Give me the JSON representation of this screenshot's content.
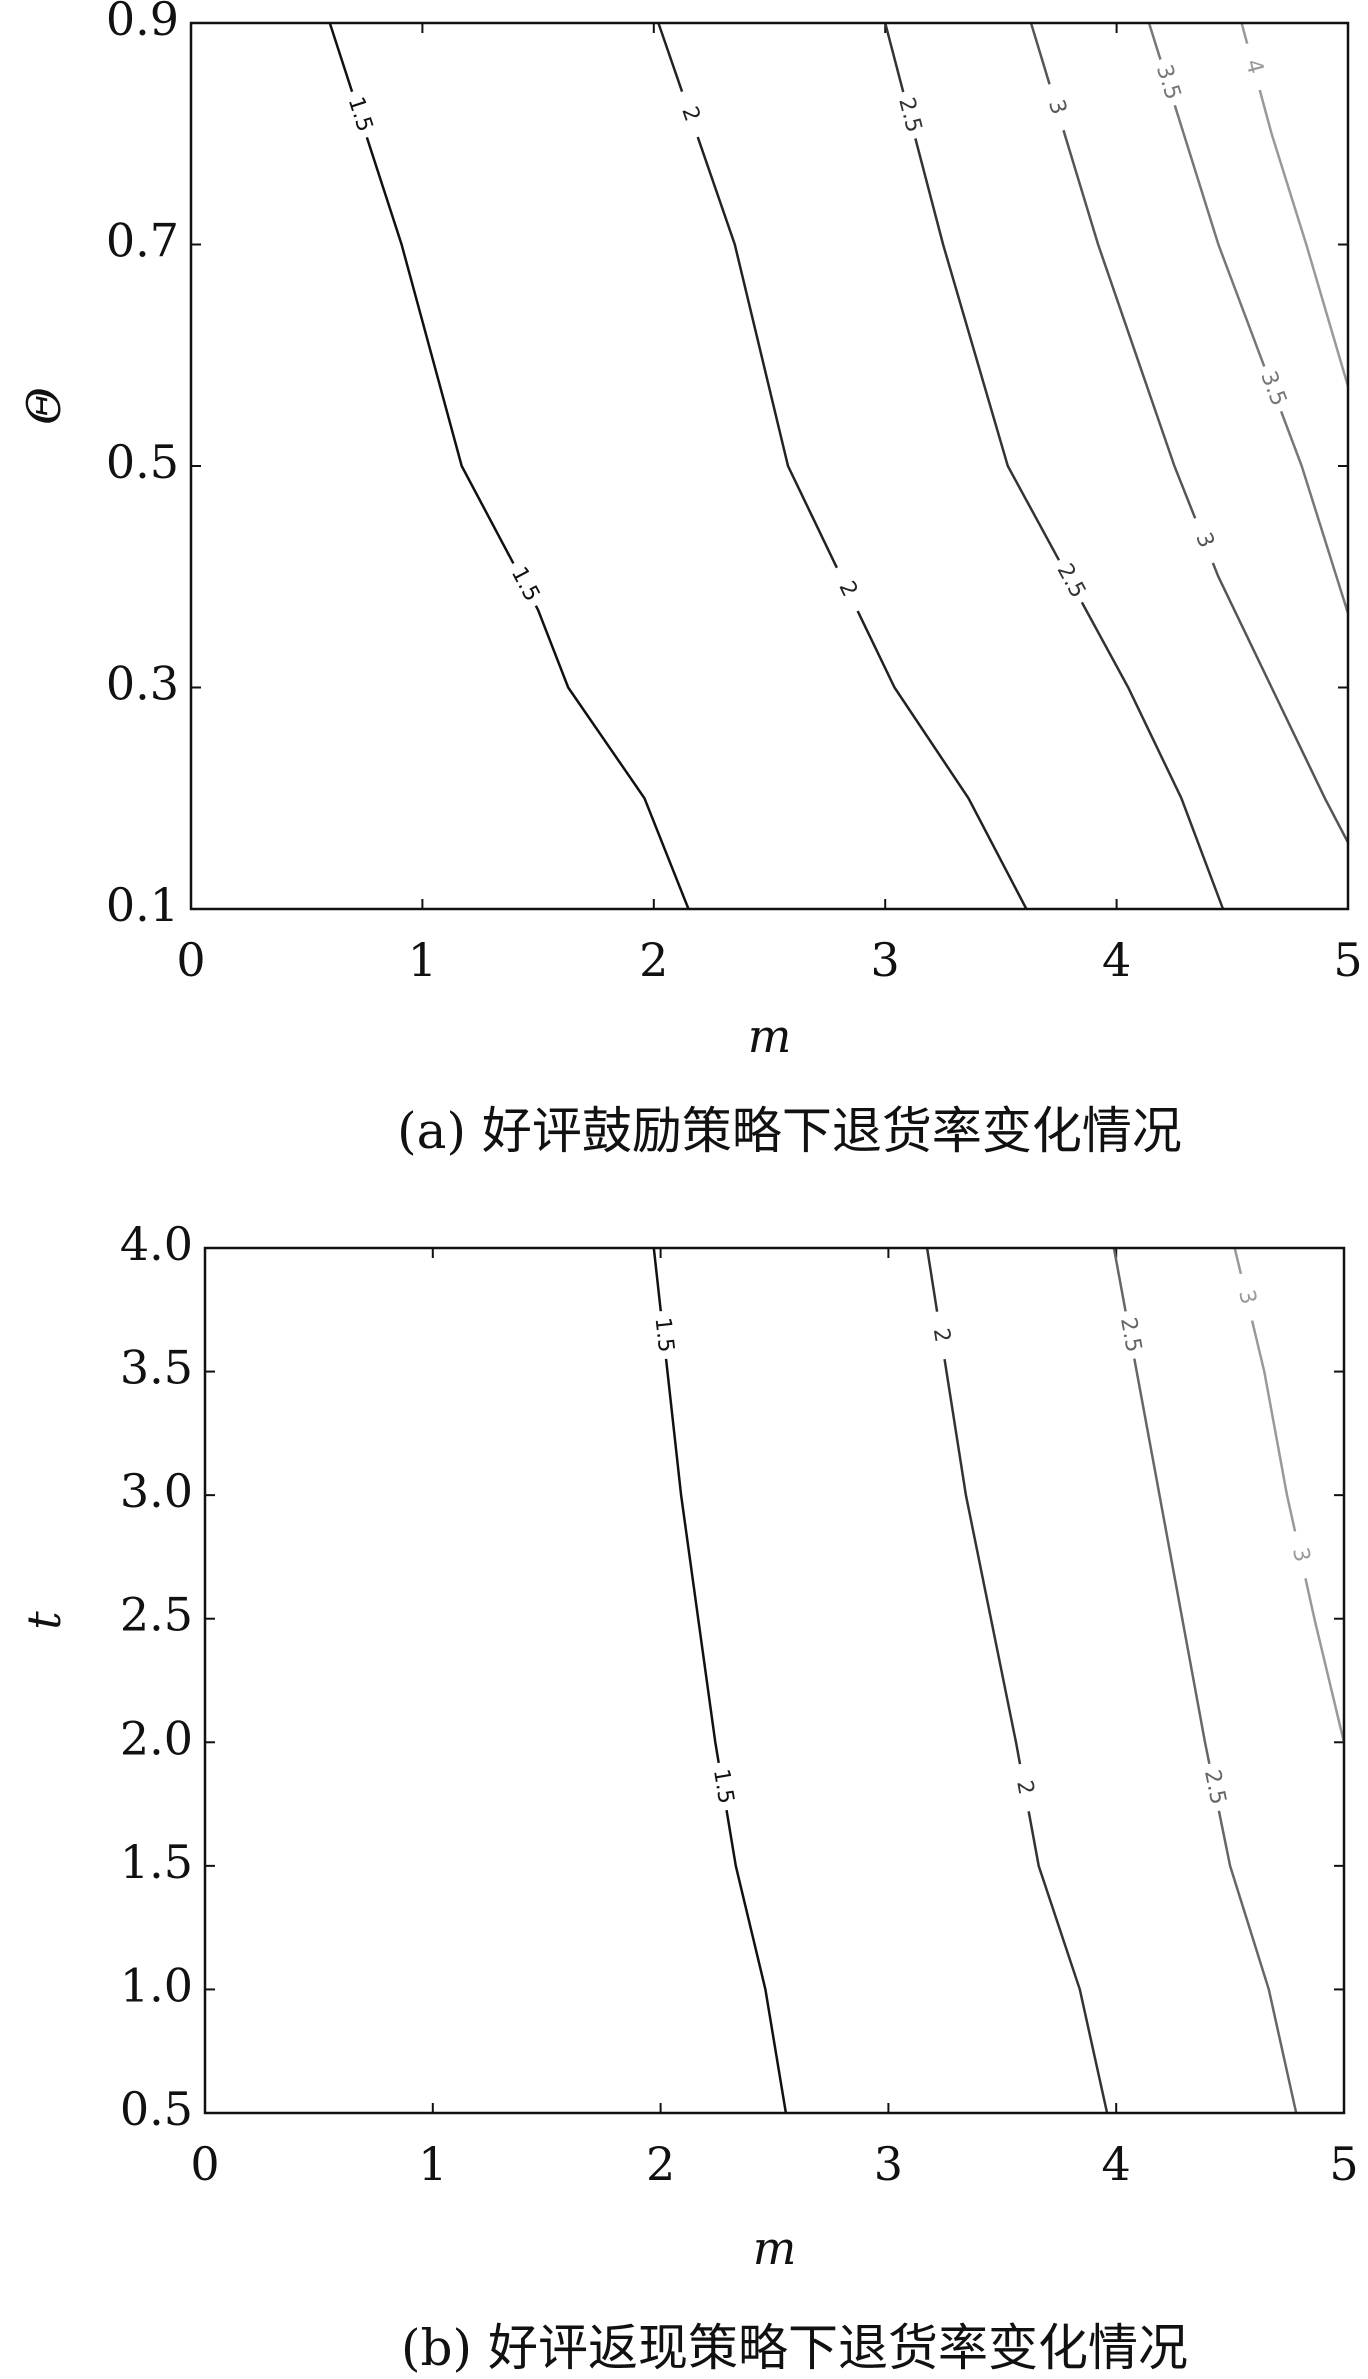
{
  "chart_data": [
    {
      "type": "contour",
      "caption": "(a) 好评鼓励策略下退货率变化情况",
      "xlabel": "m",
      "ylabel": "Θ",
      "xlim": [
        0,
        5
      ],
      "ylim": [
        0.1,
        0.9
      ],
      "xticks": [
        0,
        1,
        2,
        3,
        4,
        5
      ],
      "yticks": [
        0.1,
        0.3,
        0.5,
        0.7,
        0.9
      ],
      "contours": [
        {
          "level": 1.5,
          "color": "#111111",
          "x": [
            0.6,
            0.91,
            1.17,
            1.5,
            1.63,
            1.96,
            2.15
          ],
          "y": [
            0.9,
            0.7,
            0.5,
            0.37,
            0.3,
            0.2,
            0.1
          ]
        },
        {
          "level": 2,
          "color": "#222222",
          "x": [
            2.02,
            2.35,
            2.58,
            2.81,
            3.04,
            3.36,
            3.61
          ],
          "y": [
            0.9,
            0.7,
            0.5,
            0.4,
            0.3,
            0.2,
            0.1
          ]
        },
        {
          "level": 2.5,
          "color": "#333333",
          "x": [
            3.0,
            3.25,
            3.53,
            3.79,
            4.05,
            4.28,
            4.46
          ],
          "y": [
            0.9,
            0.7,
            0.5,
            0.4,
            0.3,
            0.2,
            0.1
          ]
        },
        {
          "level": 3,
          "color": "#555555",
          "x": [
            3.63,
            3.92,
            4.25,
            4.44,
            4.67,
            4.9,
            5.0
          ],
          "y": [
            0.9,
            0.7,
            0.5,
            0.4,
            0.3,
            0.2,
            0.16
          ]
        },
        {
          "level": 3.5,
          "color": "#777777",
          "x": [
            4.14,
            4.44,
            4.8,
            5.0
          ],
          "y": [
            0.9,
            0.7,
            0.5,
            0.367
          ]
        },
        {
          "level": 4,
          "color": "#999999",
          "x": [
            4.54,
            4.67,
            4.82,
            5.0
          ],
          "y": [
            0.9,
            0.8,
            0.7,
            0.572
          ]
        }
      ]
    },
    {
      "type": "contour",
      "caption": "(b) 好评返现策略下退货率变化情况",
      "xlabel": "m",
      "ylabel": "t",
      "xlim": [
        0,
        5
      ],
      "ylim": [
        0.5,
        4.0
      ],
      "xticks": [
        0,
        1,
        2,
        3,
        4,
        5
      ],
      "yticks": [
        0.5,
        {
          "value": 1,
          "label": "1.0"
        },
        1.5,
        {
          "value": 2,
          "label": "2.0"
        },
        2.5,
        {
          "value": 3,
          "label": "3.0"
        },
        3.5,
        {
          "value": 4,
          "label": "4.0"
        }
      ],
      "contours": [
        {
          "level": 1.5,
          "color": "#111111",
          "x": [
            1.97,
            2.09,
            2.24,
            2.33,
            2.46,
            2.55
          ],
          "y": [
            4.0,
            3.0,
            2.0,
            1.5,
            1.0,
            0.5
          ]
        },
        {
          "level": 2,
          "color": "#333333",
          "x": [
            3.17,
            3.34,
            3.56,
            3.66,
            3.84,
            3.96
          ],
          "y": [
            4.0,
            3.0,
            2.0,
            1.5,
            1.0,
            0.5
          ]
        },
        {
          "level": 2.5,
          "color": "#666666",
          "x": [
            3.99,
            4.19,
            4.39,
            4.5,
            4.67,
            4.79
          ],
          "y": [
            4.0,
            3.0,
            2.0,
            1.5,
            1.0,
            0.5
          ]
        },
        {
          "level": 3,
          "color": "#999999",
          "x": [
            4.52,
            4.65,
            4.75,
            4.87,
            5.0
          ],
          "y": [
            4.0,
            3.5,
            3.0,
            2.5,
            2.0
          ]
        }
      ]
    }
  ]
}
